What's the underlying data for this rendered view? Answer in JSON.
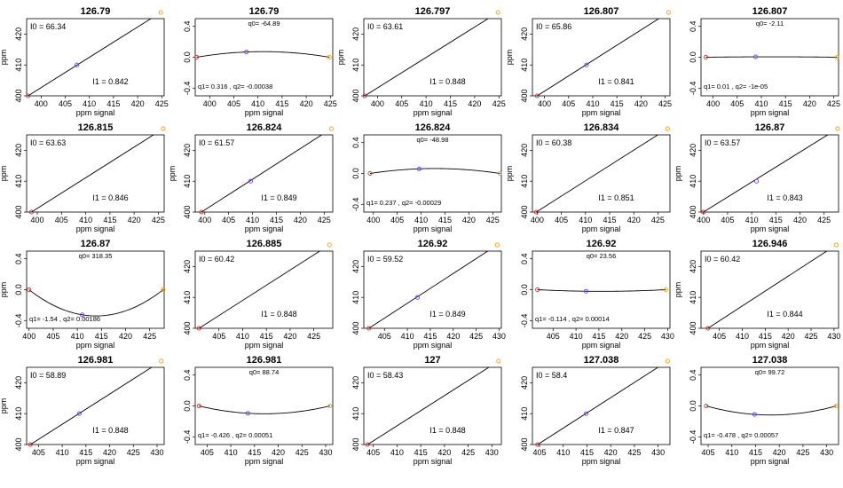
{
  "page": {
    "ylabel": "ppm",
    "xlabel": "ppm signal"
  },
  "chart_data": [
    {
      "type": "line",
      "title": "126.79",
      "xlabel": "ppm signal",
      "ylabel": "ppm",
      "xlim": [
        397,
        425.5
      ],
      "ylim": [
        400,
        425
      ],
      "xticks": [
        400,
        405,
        410,
        415,
        420,
        425
      ],
      "yticks": [
        400,
        410,
        420
      ],
      "points": [
        [
          397.3,
          400
        ],
        [
          407.4,
          410
        ],
        [
          424.8,
          427
        ]
      ],
      "annotations": [
        "I0 = 66.34",
        "I1 = 0.842"
      ]
    },
    {
      "type": "line",
      "title": "126.79",
      "xlabel": "ppm signal",
      "ylabel": "",
      "xlim": [
        397,
        425.5
      ],
      "ylim": [
        -0.5,
        0.5
      ],
      "xticks": [
        400,
        405,
        410,
        415,
        420,
        425
      ],
      "yticks": [
        -0.4,
        0,
        0.4
      ],
      "ytick_labels": [
        "-0.4",
        "0.0",
        "0.4"
      ],
      "points": [
        [
          397.3,
          0
        ],
        [
          407.6,
          0.068
        ],
        [
          424.8,
          0
        ]
      ],
      "annotations": [
        "q0= -64.89",
        "q1= 0.316 , q2= -0.00038"
      ]
    },
    {
      "type": "line",
      "title": "126.797",
      "xlabel": "ppm signal",
      "ylabel": "ppm",
      "xlim": [
        397.2,
        425.5
      ],
      "ylim": [
        400,
        425
      ],
      "xticks": [
        400,
        405,
        410,
        415,
        420,
        425
      ],
      "yticks": [
        400,
        410,
        420
      ],
      "points": [
        [
          397.4,
          400
        ],
        [
          424.8,
          427
        ]
      ],
      "annotations": [
        "I0 = 63.61",
        "I1 = 0.848"
      ]
    },
    {
      "type": "line",
      "title": "126.807",
      "xlabel": "ppm signal",
      "ylabel": "ppm",
      "xlim": [
        397.5,
        426
      ],
      "ylim": [
        400,
        425
      ],
      "xticks": [
        400,
        405,
        410,
        415,
        420,
        425
      ],
      "yticks": [
        400,
        410,
        420
      ],
      "points": [
        [
          398.5,
          400
        ],
        [
          408.7,
          410
        ],
        [
          425.7,
          427
        ]
      ],
      "annotations": [
        "I0 = 65.86",
        "I1 = 0.841"
      ]
    },
    {
      "type": "line",
      "title": "126.807",
      "xlabel": "ppm signal",
      "ylabel": "",
      "xlim": [
        397.5,
        426
      ],
      "ylim": [
        -0.5,
        0.5
      ],
      "xticks": [
        400,
        405,
        410,
        415,
        420,
        425
      ],
      "yticks": [
        -0.4,
        0,
        0.4
      ],
      "ytick_labels": [
        "-0.4",
        "0.0",
        "0.4"
      ],
      "points": [
        [
          398.5,
          0
        ],
        [
          408.8,
          0.005
        ],
        [
          425.7,
          0
        ]
      ],
      "annotations": [
        "q0= -2.11",
        "q1= 0.01 , q2= -1e-05"
      ]
    },
    {
      "type": "line",
      "title": "126.815",
      "xlabel": "ppm signal",
      "ylabel": "ppm",
      "xlim": [
        397.8,
        426.2
      ],
      "ylim": [
        400,
        425
      ],
      "xticks": [
        400,
        405,
        410,
        415,
        420,
        425
      ],
      "yticks": [
        400,
        410,
        420
      ],
      "points": [
        [
          398.8,
          400
        ],
        [
          426,
          427
        ]
      ],
      "annotations": [
        "I0 = 63.63",
        "I1 = 0.846"
      ]
    },
    {
      "type": "line",
      "title": "126.824",
      "xlabel": "ppm signal",
      "ylabel": "ppm",
      "xlim": [
        398,
        426.8
      ],
      "ylim": [
        400,
        425
      ],
      "xticks": [
        400,
        405,
        410,
        415,
        420,
        425
      ],
      "yticks": [
        400,
        410,
        420
      ],
      "points": [
        [
          399.3,
          400
        ],
        [
          409.6,
          410
        ],
        [
          426.5,
          427
        ]
      ],
      "annotations": [
        "I0 = 61.57",
        "I1 = 0.849"
      ]
    },
    {
      "type": "line",
      "title": "126.824",
      "xlabel": "ppm signal",
      "ylabel": "",
      "xlim": [
        398,
        426.8
      ],
      "ylim": [
        -0.5,
        0.5
      ],
      "xticks": [
        400,
        405,
        410,
        415,
        420,
        425
      ],
      "yticks": [
        -0.4,
        0,
        0.4
      ],
      "ytick_labels": [
        "-0.4",
        "0.0",
        "0.4"
      ],
      "points": [
        [
          399.3,
          0
        ],
        [
          409.6,
          0.06
        ],
        [
          426.5,
          0
        ]
      ],
      "annotations": [
        "q0= -48.98",
        "q1= 0.237 , q2= -0.00029"
      ]
    },
    {
      "type": "line",
      "title": "126.834",
      "xlabel": "ppm signal",
      "ylabel": "ppm",
      "xlim": [
        399,
        427.5
      ],
      "ylim": [
        400,
        425
      ],
      "xticks": [
        400,
        405,
        410,
        415,
        420,
        425
      ],
      "yticks": [
        400,
        410,
        420
      ],
      "points": [
        [
          399.8,
          400
        ],
        [
          427,
          427
        ]
      ],
      "annotations": [
        "I0 = 60.38",
        "I1 = 0.851"
      ]
    },
    {
      "type": "line",
      "title": "126.87",
      "xlabel": "ppm signal",
      "ylabel": "ppm",
      "xlim": [
        399.5,
        428
      ],
      "ylim": [
        400,
        425
      ],
      "xticks": [
        400,
        405,
        410,
        415,
        420,
        425
      ],
      "yticks": [
        400,
        410,
        420
      ],
      "points": [
        [
          400,
          400
        ],
        [
          411,
          410
        ],
        [
          427.8,
          427
        ]
      ],
      "annotations": [
        "I0 = 63.57",
        "I1 = 0.843"
      ]
    },
    {
      "type": "line",
      "title": "126.87",
      "xlabel": "ppm signal",
      "ylabel": "ppm",
      "xlim": [
        399.5,
        428
      ],
      "ylim": [
        -0.5,
        0.5
      ],
      "xticks": [
        400,
        405,
        410,
        415,
        420,
        425
      ],
      "yticks": [
        -0.4,
        0,
        0.4
      ],
      "ytick_labels": [
        "-0.4",
        "0.0",
        "0.4"
      ],
      "points": [
        [
          400,
          0
        ],
        [
          411,
          -0.325
        ],
        [
          427.8,
          0
        ]
      ],
      "annotations": [
        "q0= 318.35",
        "q1= -1.54 , q2= 0.00186"
      ]
    },
    {
      "type": "line",
      "title": "126.885",
      "xlabel": "ppm signal",
      "ylabel": "",
      "xlim": [
        400,
        429
      ],
      "ylim": [
        400,
        425
      ],
      "xticks": [
        405,
        410,
        415,
        420,
        425
      ],
      "yticks": [
        400,
        410,
        420
      ],
      "points": [
        [
          400.8,
          400
        ],
        [
          428.3,
          427
        ]
      ],
      "annotations": [
        "I0 = 60.42",
        "I1 = 0.848"
      ]
    },
    {
      "type": "line",
      "title": "126.92",
      "xlabel": "ppm signal",
      "ylabel": "",
      "xlim": [
        400.5,
        430.5
      ],
      "ylim": [
        400,
        425
      ],
      "xticks": [
        405,
        410,
        415,
        420,
        425,
        430
      ],
      "yticks": [
        400,
        410,
        420
      ],
      "points": [
        [
          401.6,
          400
        ],
        [
          412.2,
          410
        ],
        [
          429.6,
          427
        ]
      ],
      "annotations": [
        "I0 = 59.52",
        "I1 = 0.849"
      ]
    },
    {
      "type": "line",
      "title": "126.92",
      "xlabel": "ppm signal",
      "ylabel": "",
      "xlim": [
        400.5,
        430.5
      ],
      "ylim": [
        -0.5,
        0.5
      ],
      "xticks": [
        405,
        410,
        415,
        420,
        425,
        430
      ],
      "yticks": [
        -0.4,
        0,
        0.4
      ],
      "ytick_labels": [
        "-0.4",
        "0.0",
        "0.4"
      ],
      "points": [
        [
          401.6,
          0
        ],
        [
          412.2,
          -0.02
        ],
        [
          429.6,
          0
        ]
      ],
      "annotations": [
        "q0= 23.56",
        "q1= -0.114 , q2= 0.00014"
      ]
    },
    {
      "type": "line",
      "title": "126.946",
      "xlabel": "ppm signal",
      "ylabel": "ppm",
      "xlim": [
        401,
        431
      ],
      "ylim": [
        400,
        425
      ],
      "xticks": [
        405,
        410,
        415,
        420,
        425,
        430
      ],
      "yticks": [
        400,
        410,
        420
      ],
      "points": [
        [
          402.5,
          400
        ],
        [
          430.5,
          427
        ]
      ],
      "annotations": [
        "I0 = 60.42",
        "I1 = 0.844"
      ]
    },
    {
      "type": "line",
      "title": "126.981",
      "xlabel": "ppm signal",
      "ylabel": "ppm",
      "xlim": [
        402.5,
        431.5
      ],
      "ylim": [
        400,
        425
      ],
      "xticks": [
        405,
        410,
        415,
        420,
        425,
        430
      ],
      "yticks": [
        400,
        410,
        420
      ],
      "points": [
        [
          403.3,
          400
        ],
        [
          413.6,
          410
        ],
        [
          430.9,
          427
        ]
      ],
      "annotations": [
        "I0 = 58.89",
        "I1 = 0.848"
      ]
    },
    {
      "type": "line",
      "title": "126.981",
      "xlabel": "ppm signal",
      "ylabel": "",
      "xlim": [
        402.5,
        431.5
      ],
      "ylim": [
        -0.5,
        0.5
      ],
      "xticks": [
        405,
        410,
        415,
        420,
        425,
        430
      ],
      "yticks": [
        -0.4,
        0,
        0.4
      ],
      "ytick_labels": [
        "-0.4",
        "0.0",
        "0.4"
      ],
      "points": [
        [
          403.3,
          0
        ],
        [
          413.6,
          -0.095
        ],
        [
          430.9,
          0
        ]
      ],
      "annotations": [
        "q0= 88.74",
        "q1= -0.426 , q2= 0.00051"
      ]
    },
    {
      "type": "line",
      "title": "127",
      "xlabel": "ppm signal",
      "ylabel": "",
      "xlim": [
        403,
        432
      ],
      "ylim": [
        400,
        425
      ],
      "xticks": [
        405,
        410,
        415,
        420,
        425,
        430
      ],
      "yticks": [
        400,
        410,
        420
      ],
      "points": [
        [
          403.8,
          400
        ],
        [
          431.4,
          427
        ]
      ],
      "annotations": [
        "I0 = 58.43",
        "I1 = 0.848"
      ]
    },
    {
      "type": "line",
      "title": "127.038",
      "xlabel": "ppm signal",
      "ylabel": "",
      "xlim": [
        403.5,
        432.5
      ],
      "ylim": [
        400,
        425
      ],
      "xticks": [
        405,
        410,
        415,
        420,
        425,
        430
      ],
      "yticks": [
        400,
        410,
        420
      ],
      "points": [
        [
          404.6,
          400
        ],
        [
          414.8,
          410
        ],
        [
          432,
          427
        ]
      ],
      "annotations": [
        "I0 = 58.4",
        "I1 = 0.847"
      ]
    },
    {
      "type": "line",
      "title": "127.038",
      "xlabel": "ppm signal",
      "ylabel": "",
      "xlim": [
        403.5,
        432.5
      ],
      "ylim": [
        -0.5,
        0.5
      ],
      "xticks": [
        405,
        410,
        415,
        420,
        425,
        430
      ],
      "yticks": [
        -0.4,
        0,
        0.4
      ],
      "ytick_labels": [
        "-0.4",
        "0.0",
        "0.4"
      ],
      "points": [
        [
          404.6,
          0
        ],
        [
          414.8,
          -0.11
        ],
        [
          432,
          0
        ]
      ],
      "annotations": [
        "q0= 99.72",
        "q1= -0.478 , q2= 0.00057"
      ]
    }
  ],
  "colors": {
    "first_point": "#d62728",
    "mid_point": "#6a3de8",
    "last_point": "#ff9900",
    "line": "#000000"
  }
}
